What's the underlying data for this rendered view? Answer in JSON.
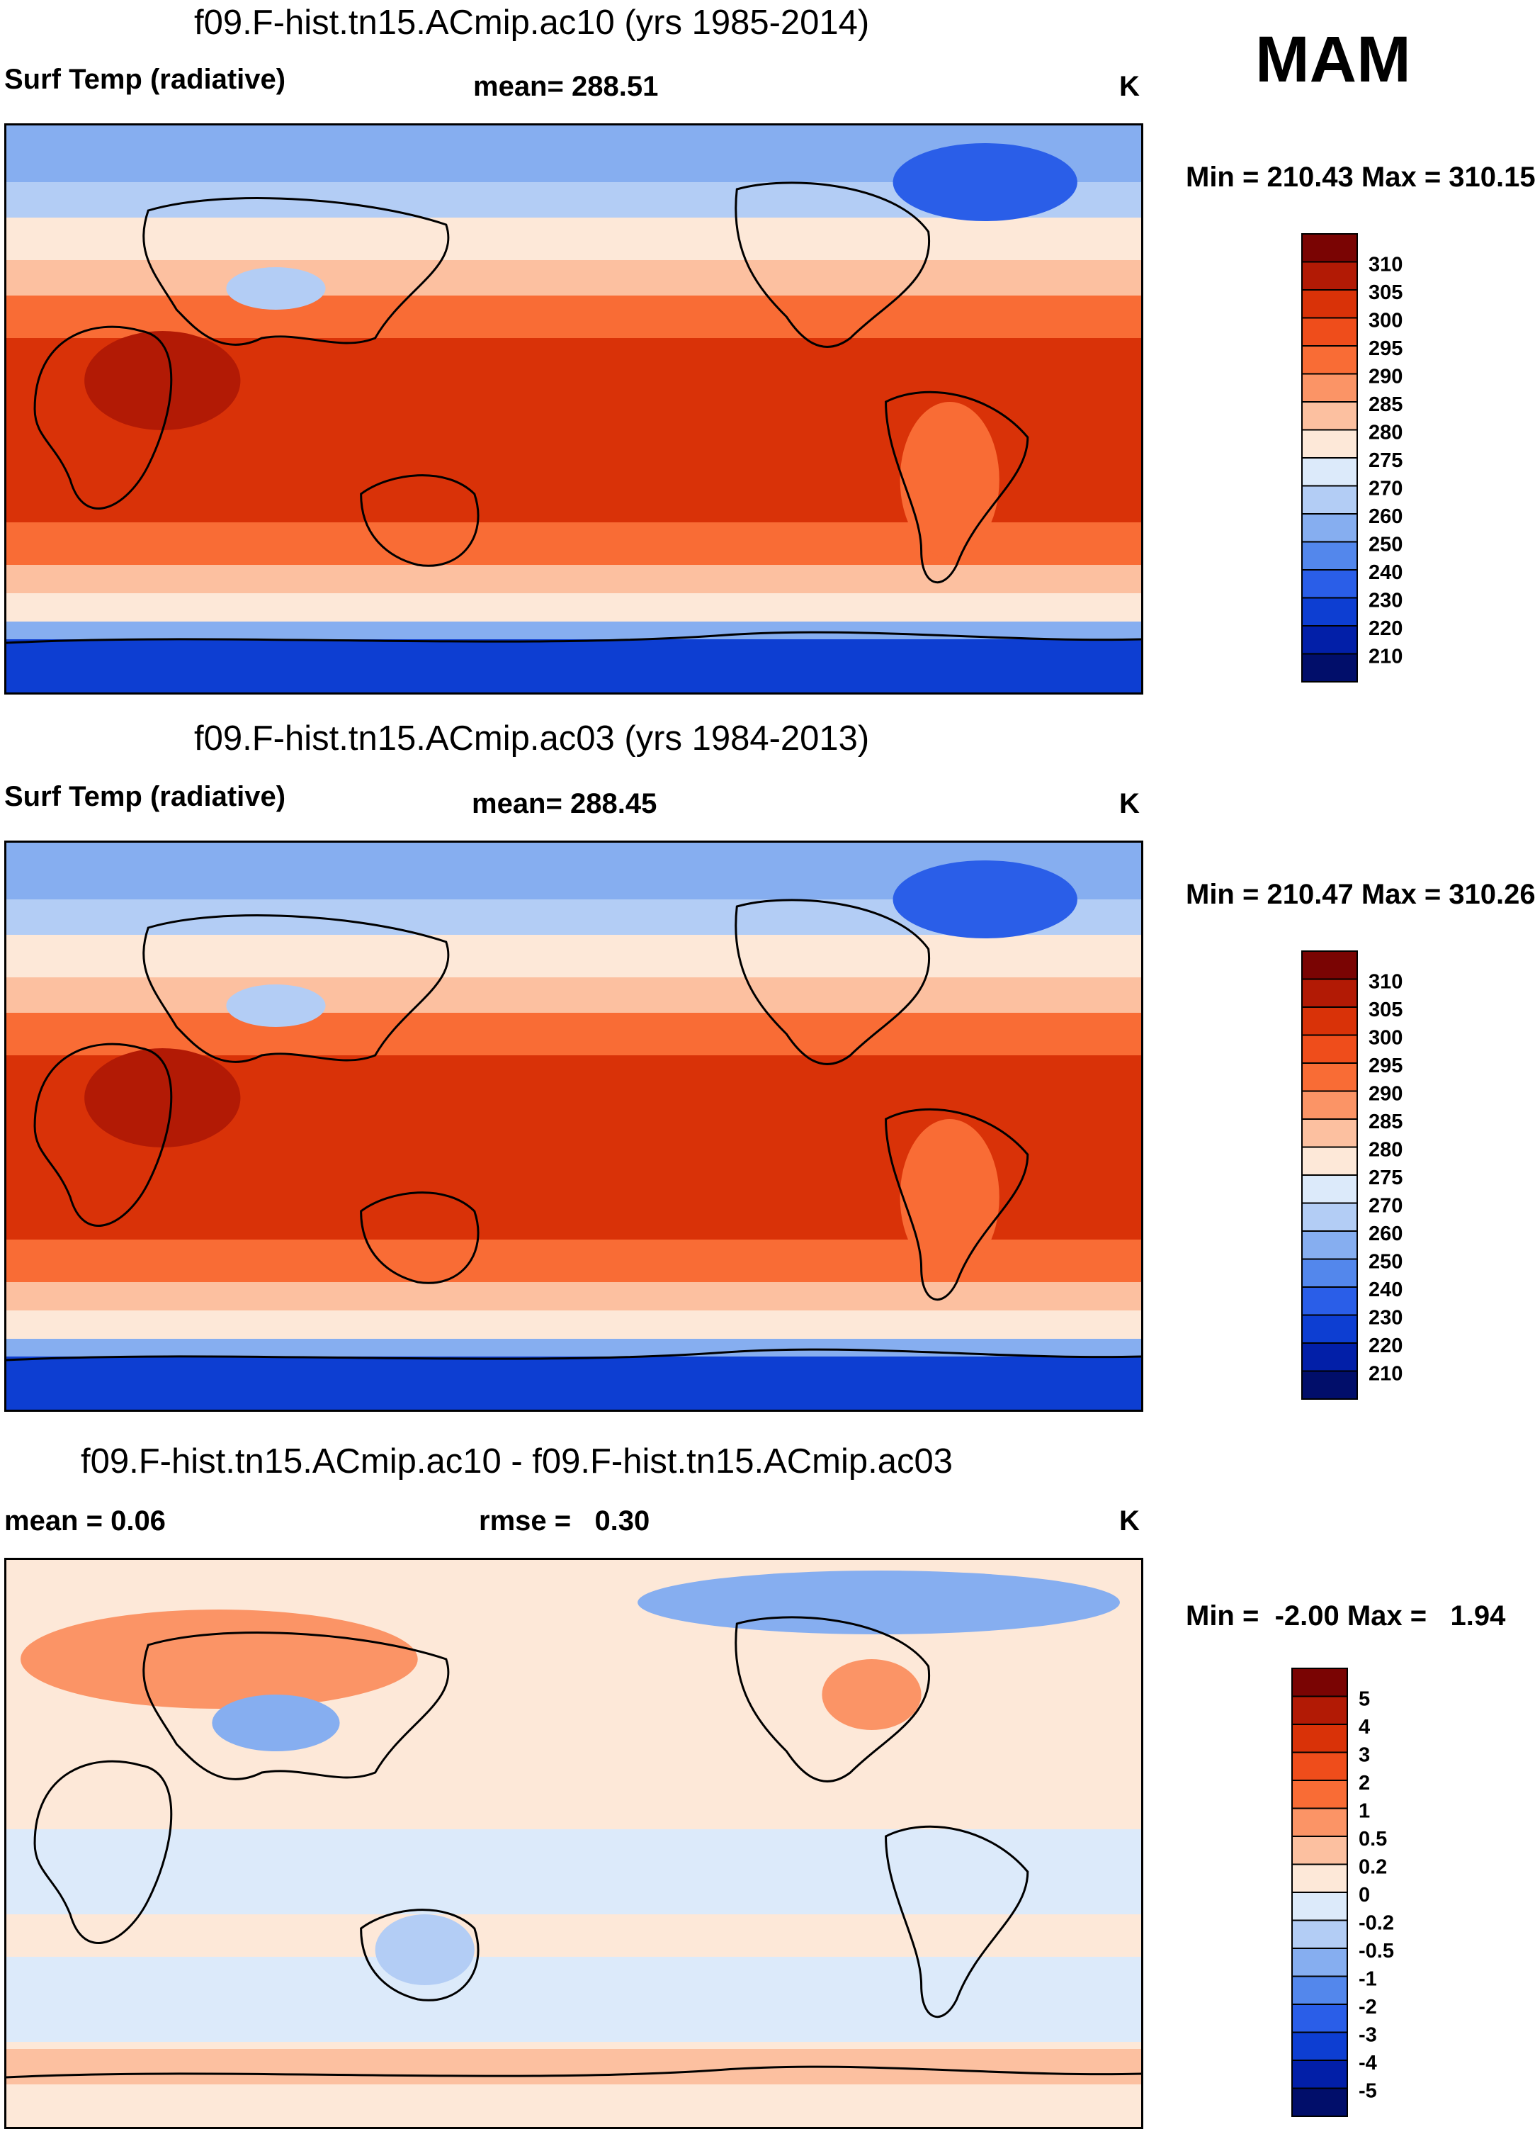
{
  "season": "MAM",
  "panels": [
    {
      "title": "f09.F-hist.tn15.ACmip.ac10 (yrs 1985-2014)",
      "left_label": "Surf Temp (radiative)",
      "center_label": "mean= 288.51",
      "units": "K",
      "minmax": "Min = 210.43 Max = 310.15"
    },
    {
      "title": "f09.F-hist.tn15.ACmip.ac03 (yrs 1984-2013)",
      "left_label": "Surf Temp (radiative)",
      "center_label": "mean= 288.45",
      "units": "K",
      "minmax": "Min = 210.47 Max = 310.26"
    },
    {
      "title": "f09.F-hist.tn15.ACmip.ac10 - f09.F-hist.tn15.ACmip.ac03",
      "left_label": "mean =   0.06",
      "center_label": "rmse =   0.30",
      "units": "K",
      "minmax": "Min =  -2.00 Max =   1.94"
    }
  ],
  "chart_data": [
    {
      "type": "heatmap",
      "variable": "Surf Temp (radiative)",
      "case": "f09.F-hist.tn15.ACmip.ac10",
      "years": "1985-2014",
      "mean": 288.51,
      "min": 210.43,
      "max": 310.15,
      "units": "K",
      "levels": [
        "310",
        "305",
        "300",
        "295",
        "290",
        "285",
        "280",
        "275",
        "270",
        "260",
        "250",
        "240",
        "230",
        "220",
        "210"
      ],
      "colors": [
        "#7a0403",
        "#b21a05",
        "#d93208",
        "#ef4d1b",
        "#f96c35",
        "#fb9466",
        "#fcc0a0",
        "#fde8d8",
        "#dceafa",
        "#b3cdf5",
        "#86aef0",
        "#5387ec",
        "#2a5ee8",
        "#0d3ed2",
        "#021fa8",
        "#010e6a"
      ]
    },
    {
      "type": "heatmap",
      "variable": "Surf Temp (radiative)",
      "case": "f09.F-hist.tn15.ACmip.ac03",
      "years": "1984-2013",
      "mean": 288.45,
      "min": 210.47,
      "max": 310.26,
      "units": "K",
      "levels": [
        "310",
        "305",
        "300",
        "295",
        "290",
        "285",
        "280",
        "275",
        "270",
        "260",
        "250",
        "240",
        "230",
        "220",
        "210"
      ],
      "colors": [
        "#7a0403",
        "#b21a05",
        "#d93208",
        "#ef4d1b",
        "#f96c35",
        "#fb9466",
        "#fcc0a0",
        "#fde8d8",
        "#dceafa",
        "#b3cdf5",
        "#86aef0",
        "#5387ec",
        "#2a5ee8",
        "#0d3ed2",
        "#021fa8",
        "#010e6a"
      ]
    },
    {
      "type": "heatmap",
      "variable": "difference",
      "case": "f09.F-hist.tn15.ACmip.ac10 - f09.F-hist.tn15.ACmip.ac03",
      "mean": 0.06,
      "rmse": 0.3,
      "min": -2.0,
      "max": 1.94,
      "units": "K",
      "levels": [
        "5",
        "4",
        "3",
        "2",
        "1",
        "0.5",
        "0.2",
        "0",
        "-0.2",
        "-0.5",
        "-1",
        "-2",
        "-3",
        "-4",
        "-5"
      ],
      "colors": [
        "#7a0403",
        "#b21a05",
        "#d93208",
        "#ef4d1b",
        "#f96c35",
        "#fb9466",
        "#fcc0a0",
        "#fde8d8",
        "#dceafa",
        "#b3cdf5",
        "#86aef0",
        "#5387ec",
        "#2a5ee8",
        "#0d3ed2",
        "#021fa8",
        "#010e6a"
      ]
    }
  ]
}
